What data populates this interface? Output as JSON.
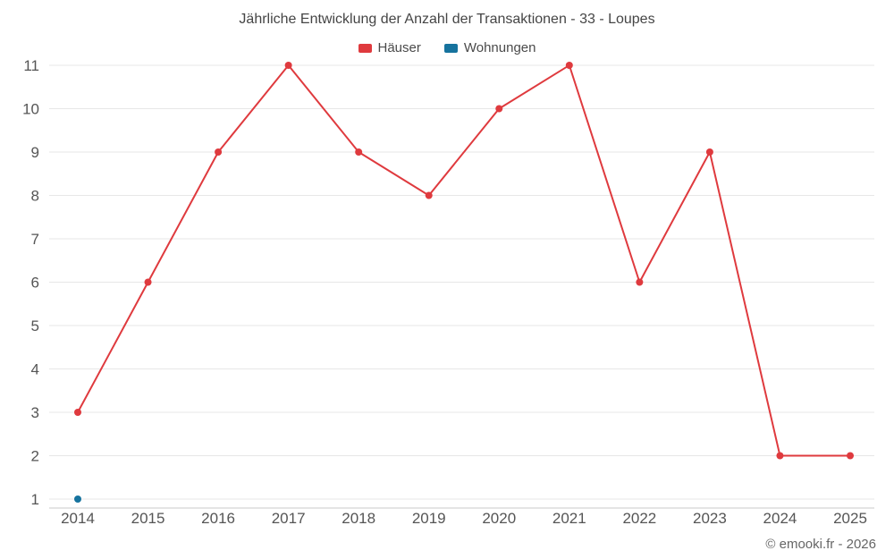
{
  "title": "Jährliche Entwicklung der Anzahl der Transaktionen - 33 - Loupes",
  "footer": "© emooki.fr - 2026",
  "legend": [
    {
      "label": "Häuser",
      "color": "#df3a3e"
    },
    {
      "label": "Wohnungen",
      "color": "#16739e"
    }
  ],
  "chart_data": {
    "type": "line",
    "title": "Jährliche Entwicklung der Anzahl der Transaktionen - 33 - Loupes",
    "x": [
      2014,
      2015,
      2016,
      2017,
      2018,
      2019,
      2020,
      2021,
      2022,
      2023,
      2024,
      2025
    ],
    "series": [
      {
        "name": "Häuser",
        "color": "#df3a3e",
        "values": [
          3,
          6,
          9,
          11,
          9,
          8,
          10,
          11,
          6,
          9,
          2,
          2
        ]
      },
      {
        "name": "Wohnungen",
        "color": "#16739e",
        "values": [
          1,
          null,
          null,
          null,
          null,
          null,
          null,
          null,
          null,
          null,
          null,
          null
        ]
      }
    ],
    "xlabel": "",
    "ylabel": "",
    "ylim": [
      1,
      11
    ],
    "yticks": [
      1,
      2,
      3,
      4,
      5,
      6,
      7,
      8,
      9,
      10,
      11
    ],
    "grid": true,
    "legend_position": "top",
    "grid_color": "#e7e7e7",
    "axis_color": "#c9c9c9",
    "tick_color": "#555555"
  }
}
